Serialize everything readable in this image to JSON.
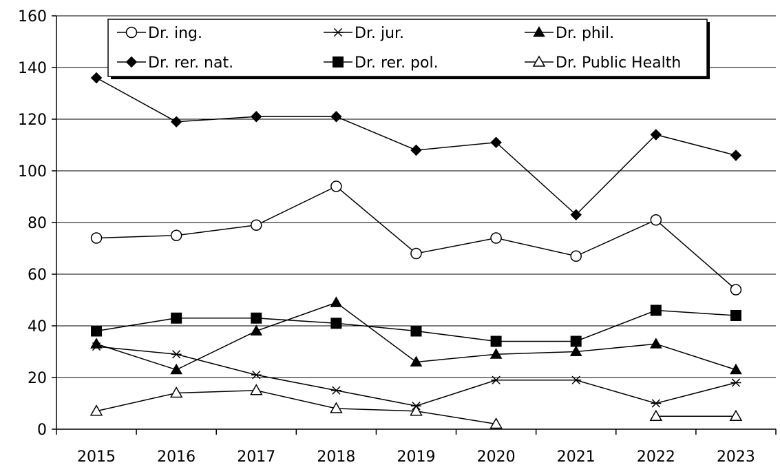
{
  "chart_data": {
    "type": "line",
    "title": "",
    "xlabel": "",
    "ylabel": "",
    "categories": [
      "2015",
      "2016",
      "2017",
      "2018",
      "2019",
      "2020",
      "2021",
      "2022",
      "2023"
    ],
    "ylim": [
      0,
      160
    ],
    "yticks": [
      0,
      20,
      40,
      60,
      80,
      100,
      120,
      140,
      160
    ],
    "yticks_labels": [
      "0",
      "20",
      "40",
      "60",
      "80",
      "100",
      "120",
      "140",
      "160"
    ],
    "grid": "horizontal",
    "legend_placement": "top",
    "series": [
      {
        "name": "Dr. ing.",
        "marker": "open-circle",
        "values": [
          74,
          75,
          79,
          94,
          68,
          74,
          67,
          81,
          54
        ]
      },
      {
        "name": "Dr. jur.",
        "marker": "asterisk",
        "values": [
          32,
          29,
          21,
          15,
          9,
          19,
          19,
          10,
          18
        ]
      },
      {
        "name": "Dr. phil.",
        "marker": "filled-triangle",
        "values": [
          33,
          23,
          38,
          49,
          26,
          29,
          30,
          33,
          23
        ]
      },
      {
        "name": "Dr. rer. nat.",
        "marker": "filled-diamond",
        "values": [
          136,
          119,
          121,
          121,
          108,
          111,
          83,
          114,
          106
        ]
      },
      {
        "name": "Dr. rer. pol.",
        "marker": "filled-square",
        "values": [
          38,
          43,
          43,
          41,
          38,
          34,
          34,
          46,
          44
        ]
      },
      {
        "name": "Dr. Public Health",
        "marker": "open-triangle",
        "values": [
          7,
          14,
          15,
          8,
          7,
          2,
          null,
          5,
          5
        ]
      }
    ],
    "colors": {
      "line": "#000000",
      "grid": "#000000",
      "background": "#ffffff"
    }
  }
}
